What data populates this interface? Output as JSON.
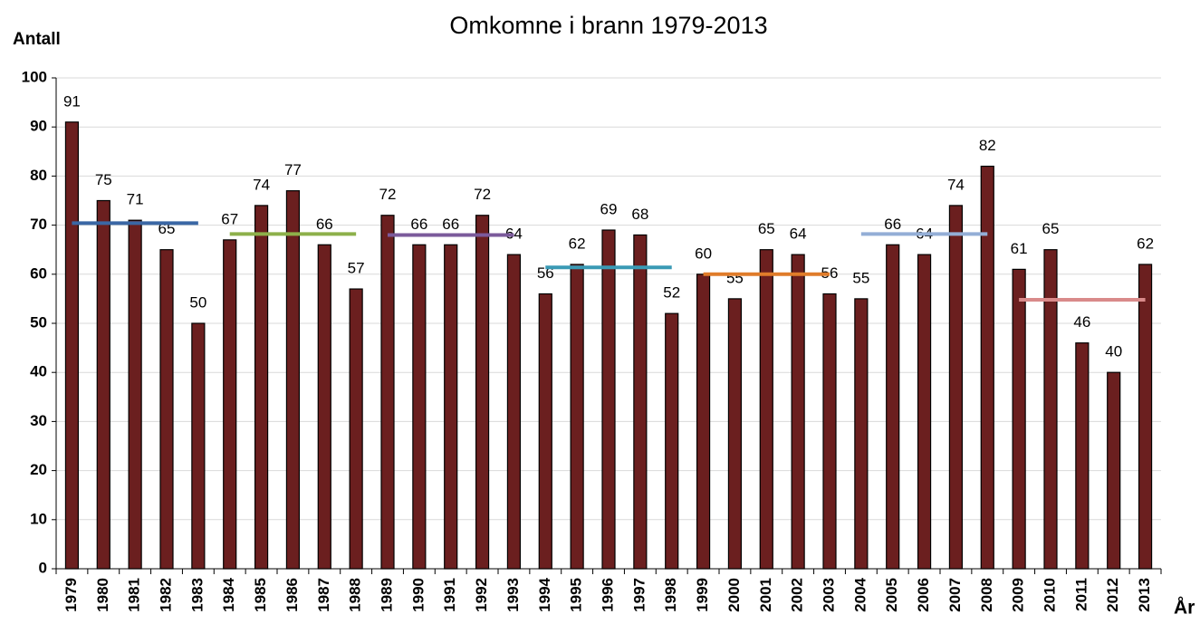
{
  "chart_data": {
    "type": "bar",
    "title": "Omkomne i brann 1979-2013",
    "y_label": "Antall",
    "x_label": "År",
    "categories": [
      "1979",
      "1980",
      "1981",
      "1982",
      "1983",
      "1984",
      "1985",
      "1986",
      "1987",
      "1988",
      "1989",
      "1990",
      "1991",
      "1992",
      "1993",
      "1994",
      "1995",
      "1996",
      "1997",
      "1998",
      "1999",
      "2000",
      "2001",
      "2002",
      "2003",
      "2004",
      "2005",
      "2006",
      "2007",
      "2008",
      "2009",
      "2010",
      "2011",
      "2012",
      "2013"
    ],
    "values": [
      91,
      75,
      71,
      65,
      50,
      67,
      74,
      77,
      66,
      57,
      72,
      66,
      66,
      72,
      64,
      56,
      62,
      69,
      68,
      52,
      60,
      55,
      65,
      64,
      56,
      55,
      66,
      64,
      74,
      82,
      61,
      65,
      46,
      40,
      62
    ],
    "color": "#6b1f1f",
    "ylim": [
      0,
      100
    ],
    "yticks": [
      0,
      10,
      20,
      30,
      40,
      50,
      60,
      70,
      80,
      90,
      100
    ],
    "grid": true,
    "averages": [
      {
        "from": "1979",
        "to": "1983",
        "value": 70.4,
        "color": "#3a67a5"
      },
      {
        "from": "1984",
        "to": "1988",
        "value": 68.2,
        "color": "#8db04a"
      },
      {
        "from": "1989",
        "to": "1993",
        "value": 68,
        "color": "#7b5a9b"
      },
      {
        "from": "1994",
        "to": "1998",
        "value": 61.4,
        "color": "#3a9ab5"
      },
      {
        "from": "1999",
        "to": "2003",
        "value": 60,
        "color": "#e07c2a"
      },
      {
        "from": "2004",
        "to": "2008",
        "value": 68.2,
        "color": "#93aed6"
      },
      {
        "from": "2009",
        "to": "2013",
        "value": 54.8,
        "color": "#d98a8a"
      }
    ]
  }
}
